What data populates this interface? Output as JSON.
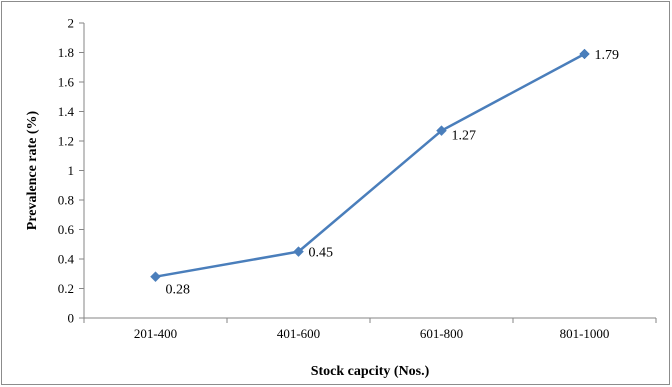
{
  "chart_data": {
    "type": "line",
    "categories": [
      "201-400",
      "401-600",
      "601-800",
      "801-1000"
    ],
    "series": [
      {
        "values": [
          0.28,
          0.45,
          1.27,
          1.79
        ]
      }
    ],
    "data_labels": [
      "0.28",
      "0.45",
      "1.27",
      "1.79"
    ],
    "y_ticks": [
      "0",
      "0.2",
      "0.4",
      "0.6",
      "0.8",
      "1",
      "1.2",
      "1.4",
      "1.6",
      "1.8",
      "2"
    ],
    "ylim": [
      0,
      2
    ],
    "xlabel": "Stock capcity (Nos.)",
    "ylabel": "Prevalence rate (%)",
    "grid": false,
    "line_color": "#4a7ebb",
    "marker": "diamond"
  }
}
